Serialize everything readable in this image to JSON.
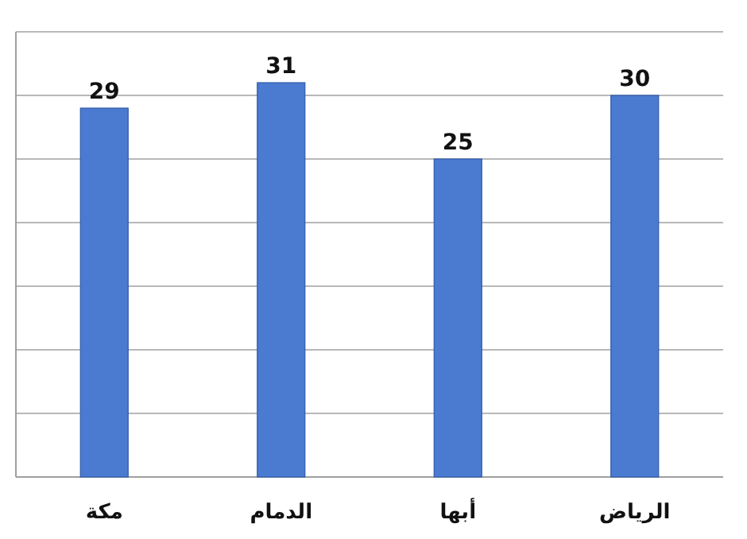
{
  "chart_data": {
    "type": "bar",
    "categories": [
      "مكة",
      "الدمام",
      "أبها",
      "الرياض"
    ],
    "values": [
      29,
      31,
      25,
      30
    ],
    "color": "#4a7bd0",
    "ylim": [
      0,
      35
    ],
    "yticks": [
      {
        "value": 0,
        "label": null
      },
      {
        "value": 5,
        "label": null
      },
      {
        "value": 10,
        "label": null
      },
      {
        "value": 15,
        "label": null
      },
      {
        "value": 20,
        "label": null
      },
      {
        "value": 25,
        "label": null
      },
      {
        "value": 30,
        "label": null
      },
      {
        "value": 35,
        "label": null
      }
    ],
    "grid": "y",
    "tick_labels": "x",
    "data_labels": true
  }
}
